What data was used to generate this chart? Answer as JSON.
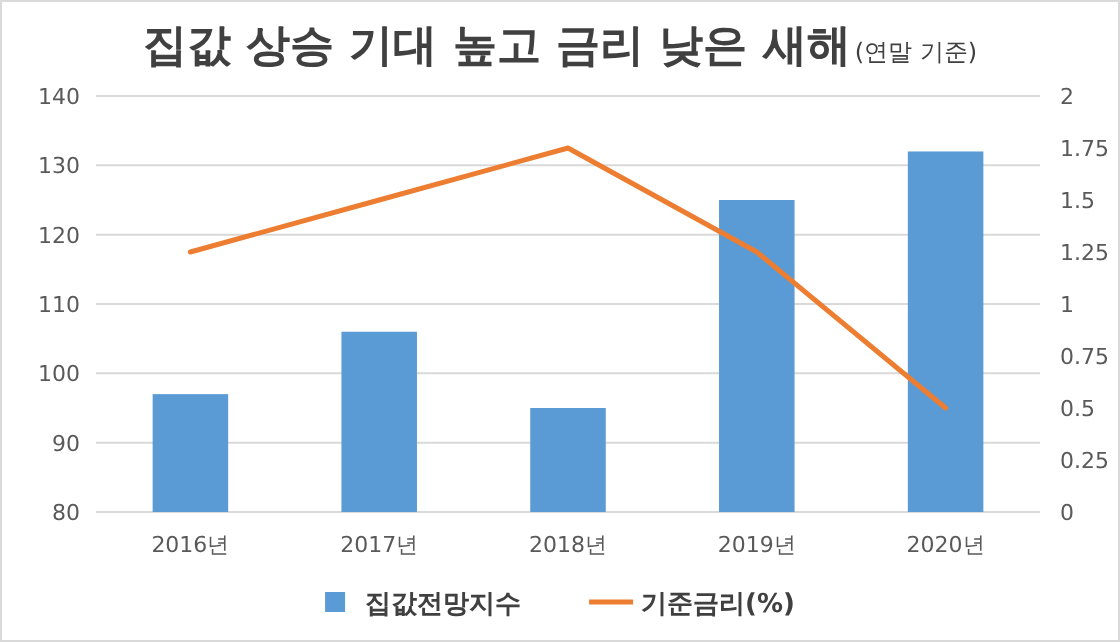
{
  "chart_data": {
    "type": "bar",
    "title": "집값 상승 기대 높고 금리 낮은 새해",
    "subtitle": "(연말 기준)",
    "categories": [
      "2016년",
      "2017년",
      "2018년",
      "2019년",
      "2020년"
    ],
    "series": [
      {
        "name": "집값전망지수",
        "color": "#5b9bd5",
        "values": [
          97,
          106,
          95,
          125,
          132
        ]
      },
      {
        "name": "기준금리(%)",
        "type": "line",
        "axis": "y2",
        "color": "#ed7d31",
        "values": [
          1.25,
          1.5,
          1.75,
          1.25,
          0.5
        ]
      }
    ],
    "ylim": [
      80,
      140
    ],
    "yticks": [
      80,
      90,
      100,
      110,
      120,
      130,
      140
    ],
    "y2lim": [
      0,
      2
    ],
    "y2ticks": [
      0,
      0.25,
      0.5,
      0.75,
      1,
      1.25,
      1.5,
      1.75,
      2
    ],
    "grid": "y",
    "legend": "bottom"
  }
}
